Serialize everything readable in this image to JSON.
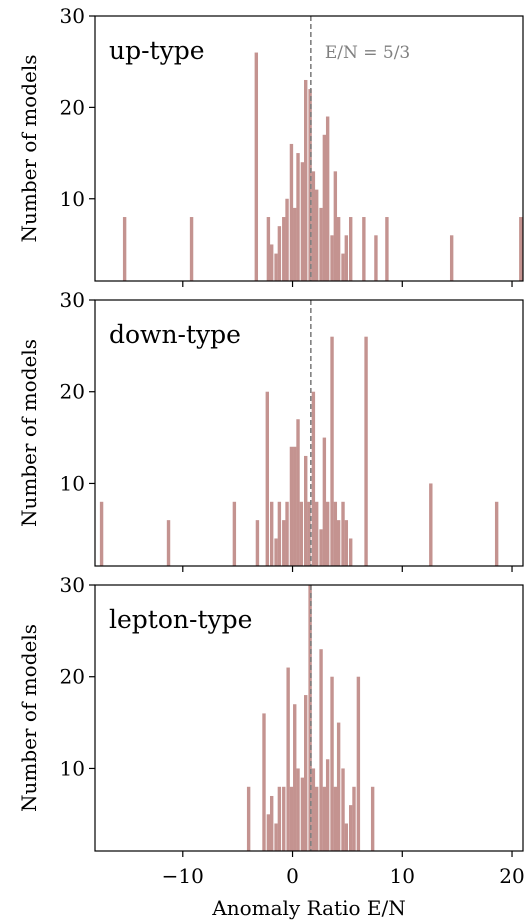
{
  "chart_data": {
    "type": "bar",
    "xlabel": "Anomaly Ratio E/N",
    "ylabel": "Number of models",
    "xlim": [
      -18,
      21
    ],
    "ylim": [
      1,
      30
    ],
    "xticks": [
      -10,
      0,
      10,
      20
    ],
    "xtick_labels": [
      "−10",
      "0",
      "10",
      "20"
    ],
    "yticks": [
      10,
      20,
      30
    ],
    "ytick_labels": [
      "10",
      "20",
      "30"
    ],
    "bar_color": "#c49390",
    "reference_line": {
      "x": 1.6667,
      "label": "E/N = 5/3",
      "color": "#808080",
      "style": "dashed"
    },
    "panels": [
      {
        "title": "up-type",
        "bars": [
          {
            "x": -15.3,
            "count": 8
          },
          {
            "x": -9.2,
            "count": 8
          },
          {
            "x": -3.3,
            "count": 26
          },
          {
            "x": -2.2,
            "count": 8
          },
          {
            "x": -1.9,
            "count": 5
          },
          {
            "x": -1.5,
            "count": 4
          },
          {
            "x": -1.2,
            "count": 7
          },
          {
            "x": -0.8,
            "count": 8
          },
          {
            "x": -0.5,
            "count": 10
          },
          {
            "x": -0.1,
            "count": 16
          },
          {
            "x": 0.2,
            "count": 9
          },
          {
            "x": 0.5,
            "count": 15
          },
          {
            "x": 0.9,
            "count": 14
          },
          {
            "x": 1.2,
            "count": 23
          },
          {
            "x": 1.6,
            "count": 22
          },
          {
            "x": 1.9,
            "count": 13
          },
          {
            "x": 2.2,
            "count": 11
          },
          {
            "x": 2.6,
            "count": 9
          },
          {
            "x": 2.9,
            "count": 17
          },
          {
            "x": 3.2,
            "count": 19
          },
          {
            "x": 3.6,
            "count": 6
          },
          {
            "x": 3.9,
            "count": 13
          },
          {
            "x": 4.2,
            "count": 8
          },
          {
            "x": 4.6,
            "count": 4
          },
          {
            "x": 4.9,
            "count": 6
          },
          {
            "x": 5.3,
            "count": 8
          },
          {
            "x": 6.5,
            "count": 8
          },
          {
            "x": 7.6,
            "count": 6
          },
          {
            "x": 8.6,
            "count": 8
          },
          {
            "x": 14.5,
            "count": 6
          },
          {
            "x": 20.8,
            "count": 8
          }
        ]
      },
      {
        "title": "down-type",
        "bars": [
          {
            "x": -17.4,
            "count": 8
          },
          {
            "x": -11.3,
            "count": 6
          },
          {
            "x": -5.3,
            "count": 8
          },
          {
            "x": -3.2,
            "count": 6
          },
          {
            "x": -2.3,
            "count": 20
          },
          {
            "x": -1.9,
            "count": 8
          },
          {
            "x": -1.5,
            "count": 4
          },
          {
            "x": -1.2,
            "count": 8
          },
          {
            "x": -0.8,
            "count": 6
          },
          {
            "x": -0.5,
            "count": 8
          },
          {
            "x": -0.1,
            "count": 14
          },
          {
            "x": 0.2,
            "count": 14
          },
          {
            "x": 0.5,
            "count": 17
          },
          {
            "x": 0.8,
            "count": 8
          },
          {
            "x": 1.2,
            "count": 13
          },
          {
            "x": 1.5,
            "count": 8
          },
          {
            "x": 1.9,
            "count": 20
          },
          {
            "x": 2.2,
            "count": 8
          },
          {
            "x": 2.6,
            "count": 5
          },
          {
            "x": 2.9,
            "count": 15
          },
          {
            "x": 3.2,
            "count": 8
          },
          {
            "x": 3.6,
            "count": 26
          },
          {
            "x": 3.9,
            "count": 8
          },
          {
            "x": 4.2,
            "count": 6
          },
          {
            "x": 4.6,
            "count": 8
          },
          {
            "x": 4.9,
            "count": 6
          },
          {
            "x": 5.3,
            "count": 4
          },
          {
            "x": 6.7,
            "count": 26
          },
          {
            "x": 12.6,
            "count": 10
          },
          {
            "x": 18.6,
            "count": 8
          }
        ]
      },
      {
        "title": "lepton-type",
        "bars": [
          {
            "x": -4.0,
            "count": 8
          },
          {
            "x": -2.6,
            "count": 16
          },
          {
            "x": -2.2,
            "count": 5
          },
          {
            "x": -1.9,
            "count": 7
          },
          {
            "x": -1.5,
            "count": 4
          },
          {
            "x": -1.2,
            "count": 8
          },
          {
            "x": -0.8,
            "count": 8
          },
          {
            "x": -0.4,
            "count": 21
          },
          {
            "x": -0.1,
            "count": 8
          },
          {
            "x": 0.2,
            "count": 17
          },
          {
            "x": 0.5,
            "count": 10
          },
          {
            "x": 0.9,
            "count": 9
          },
          {
            "x": 1.2,
            "count": 18
          },
          {
            "x": 1.6,
            "count": 31
          },
          {
            "x": 1.9,
            "count": 10
          },
          {
            "x": 2.2,
            "count": 8
          },
          {
            "x": 2.6,
            "count": 23
          },
          {
            "x": 2.9,
            "count": 8
          },
          {
            "x": 3.2,
            "count": 11
          },
          {
            "x": 3.6,
            "count": 20
          },
          {
            "x": 3.9,
            "count": 8
          },
          {
            "x": 4.2,
            "count": 15
          },
          {
            "x": 4.6,
            "count": 10
          },
          {
            "x": 4.9,
            "count": 4
          },
          {
            "x": 5.3,
            "count": 6
          },
          {
            "x": 5.6,
            "count": 8
          },
          {
            "x": 6.0,
            "count": 20
          },
          {
            "x": 7.3,
            "count": 8
          }
        ]
      }
    ]
  }
}
